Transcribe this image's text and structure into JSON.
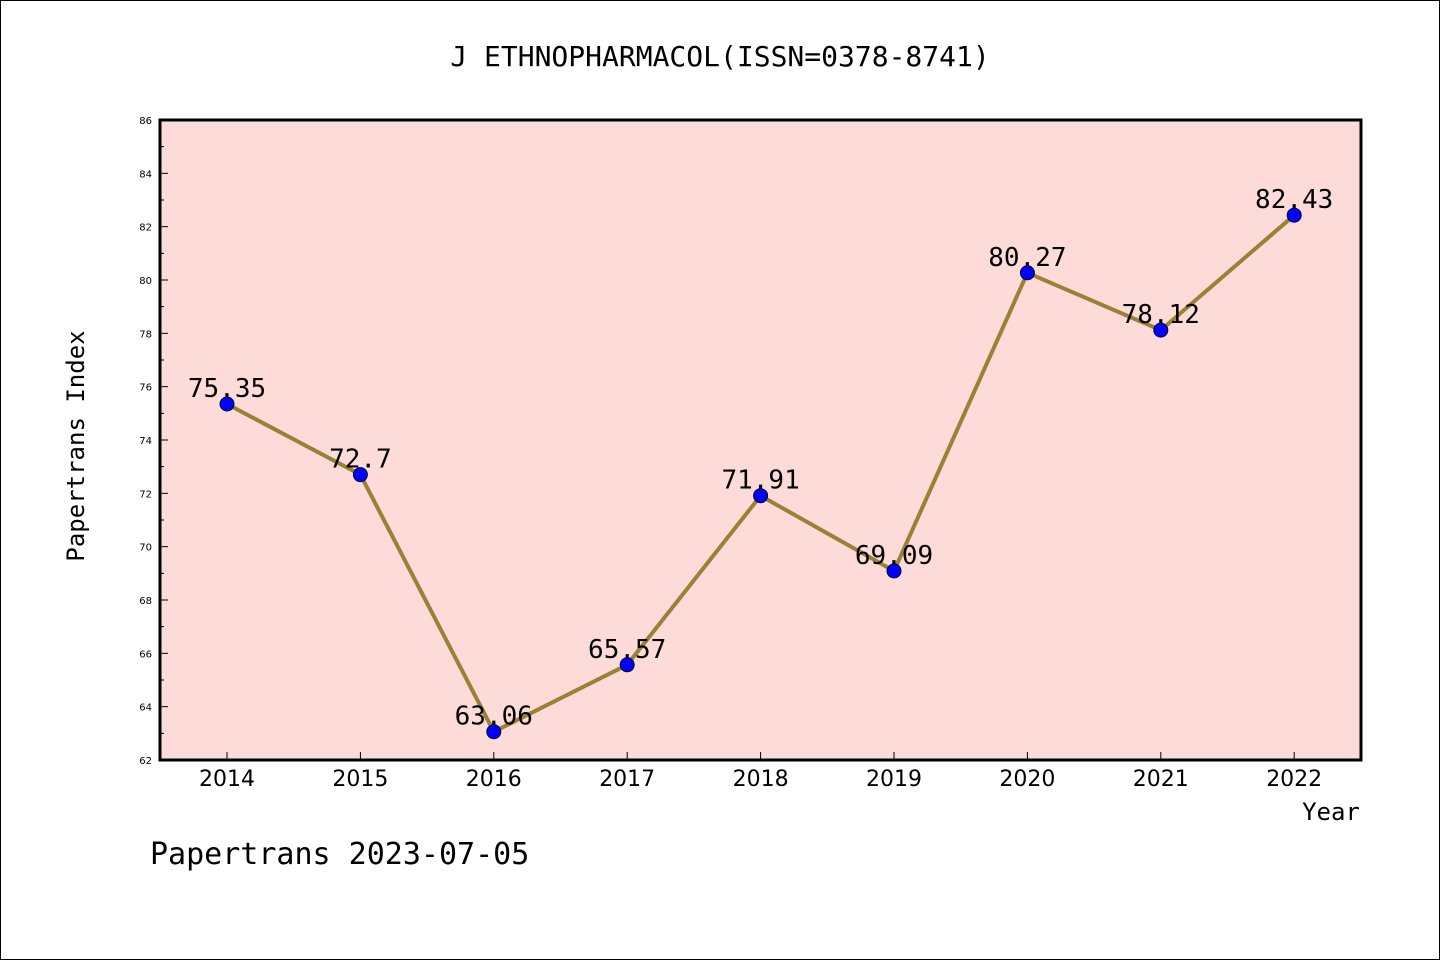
{
  "chart_data": {
    "type": "line",
    "title": "J ETHNOPHARMACOL(ISSN=0378-8741)",
    "xlabel": "Year",
    "ylabel": "Papertrans Index",
    "footer": "Papertrans 2023-07-05",
    "categories": [
      "2014",
      "2015",
      "2016",
      "2017",
      "2018",
      "2019",
      "2020",
      "2021",
      "2022"
    ],
    "ylim": [
      62,
      86
    ],
    "yticks": [
      62,
      64,
      66,
      68,
      70,
      72,
      74,
      76,
      78,
      80,
      82,
      84,
      86
    ],
    "series": [
      {
        "values": [
          75.35,
          72.7,
          63.06,
          65.57,
          71.91,
          69.09,
          80.27,
          78.12,
          82.43
        ],
        "labels": [
          "75.35",
          "72.7",
          "63.06",
          "65.57",
          "71.91",
          "69.09",
          "80.27",
          "78.12",
          "82.43"
        ]
      }
    ],
    "grid": false,
    "colors": {
      "plot_background": "#fddbd8",
      "line": "#9b8135",
      "marker": "#0000ff",
      "border": "#000000"
    }
  }
}
